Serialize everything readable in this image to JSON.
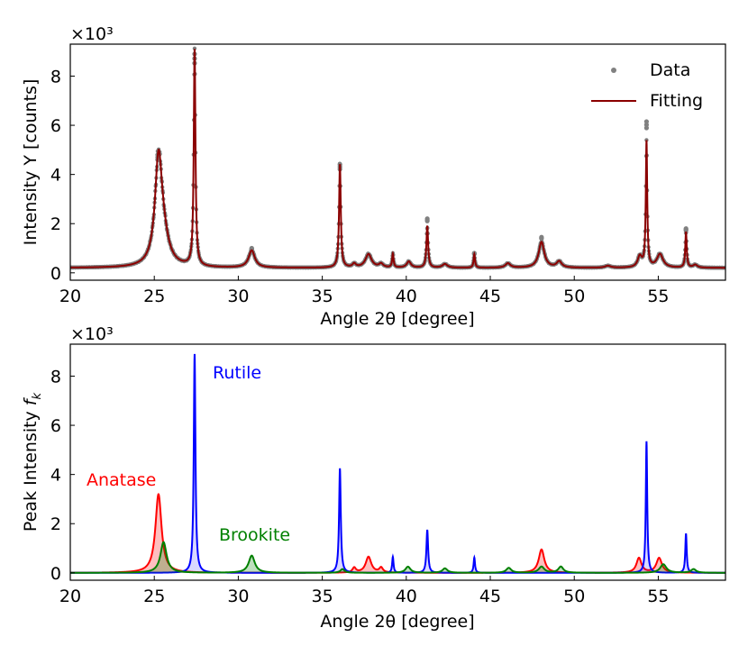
{
  "chart_data": [
    {
      "type": "line",
      "xlabel": "Angle 2θ [degree]",
      "ylabel": "Intensity Y [counts]",
      "y_multiplier": "×10³",
      "xlim": [
        20,
        59
      ],
      "ylim": [
        -300,
        9300
      ],
      "xticks": [
        20,
        25,
        30,
        35,
        40,
        45,
        50,
        55
      ],
      "yticks": [
        0,
        2000,
        4000,
        6000,
        8000
      ],
      "ytick_labels": [
        "0",
        "2",
        "4",
        "6",
        "8"
      ],
      "grid": false,
      "legend_position": "top-right",
      "baseline": 200,
      "peaks": [
        {
          "x": 25.25,
          "h": 4000,
          "w": 0.25
        },
        {
          "x": 25.5,
          "h": 1100,
          "w": 0.4
        },
        {
          "x": 27.4,
          "h": 8800,
          "w": 0.06
        },
        {
          "x": 30.8,
          "h": 700,
          "w": 0.22
        },
        {
          "x": 36.05,
          "h": 4200,
          "w": 0.06
        },
        {
          "x": 36.9,
          "h": 150,
          "w": 0.12
        },
        {
          "x": 37.75,
          "h": 550,
          "w": 0.22
        },
        {
          "x": 38.5,
          "h": 150,
          "w": 0.15
        },
        {
          "x": 39.2,
          "h": 550,
          "w": 0.05
        },
        {
          "x": 40.15,
          "h": 250,
          "w": 0.15
        },
        {
          "x": 41.25,
          "h": 1700,
          "w": 0.06
        },
        {
          "x": 42.3,
          "h": 150,
          "w": 0.18
        },
        {
          "x": 44.05,
          "h": 550,
          "w": 0.05
        },
        {
          "x": 46.05,
          "h": 180,
          "w": 0.18
        },
        {
          "x": 48.05,
          "h": 1050,
          "w": 0.2
        },
        {
          "x": 49.1,
          "h": 250,
          "w": 0.18
        },
        {
          "x": 52.0,
          "h": 80,
          "w": 0.2
        },
        {
          "x": 53.9,
          "h": 450,
          "w": 0.15
        },
        {
          "x": 54.3,
          "h": 5100,
          "w": 0.05
        },
        {
          "x": 55.1,
          "h": 550,
          "w": 0.22
        },
        {
          "x": 56.65,
          "h": 1450,
          "w": 0.05
        },
        {
          "x": 57.2,
          "h": 120,
          "w": 0.15
        }
      ],
      "data_highlights": [
        {
          "x": 25.2,
          "y": 4800
        },
        {
          "x": 27.4,
          "y": 8900
        },
        {
          "x": 30.8,
          "y": 1000
        },
        {
          "x": 36.05,
          "y": 4400
        },
        {
          "x": 41.25,
          "y": 2200
        },
        {
          "x": 44.05,
          "y": 800
        },
        {
          "x": 48.05,
          "y": 1450
        },
        {
          "x": 54.3,
          "y": 6150
        },
        {
          "x": 56.65,
          "y": 1800
        }
      ],
      "series": [
        {
          "name": "Data",
          "style": "scatter",
          "color": "#808080"
        },
        {
          "name": "Fitting",
          "style": "line",
          "color": "#8b0000"
        }
      ]
    },
    {
      "type": "area",
      "xlabel": "Angle 2θ [degree]",
      "ylabel": "Peak Intensity f_k",
      "y_multiplier": "×10³",
      "xlim": [
        20,
        59
      ],
      "ylim": [
        -300,
        9300
      ],
      "xticks": [
        20,
        25,
        30,
        35,
        40,
        45,
        50,
        55
      ],
      "yticks": [
        0,
        2000,
        4000,
        6000,
        8000
      ],
      "ytick_labels": [
        "0",
        "2",
        "4",
        "6",
        "8"
      ],
      "grid": false,
      "series": [
        {
          "name": "Anatase",
          "color": "#ff0000",
          "peaks": [
            {
              "x": 25.25,
              "h": 3200,
              "w": 0.22
            },
            {
              "x": 36.9,
              "h": 200,
              "w": 0.12
            },
            {
              "x": 37.75,
              "h": 650,
              "w": 0.2
            },
            {
              "x": 38.5,
              "h": 200,
              "w": 0.13
            },
            {
              "x": 48.05,
              "h": 950,
              "w": 0.2
            },
            {
              "x": 53.85,
              "h": 600,
              "w": 0.18
            },
            {
              "x": 55.05,
              "h": 600,
              "w": 0.2
            }
          ]
        },
        {
          "name": "Rutile",
          "color": "#0000ff",
          "peaks": [
            {
              "x": 27.4,
              "h": 8900,
              "w": 0.06
            },
            {
              "x": 36.05,
              "h": 4250,
              "w": 0.06
            },
            {
              "x": 39.2,
              "h": 650,
              "w": 0.05
            },
            {
              "x": 41.25,
              "h": 1750,
              "w": 0.06
            },
            {
              "x": 44.05,
              "h": 620,
              "w": 0.05
            },
            {
              "x": 54.3,
              "h": 5350,
              "w": 0.05
            },
            {
              "x": 56.65,
              "h": 1600,
              "w": 0.05
            }
          ]
        },
        {
          "name": "Brookite",
          "color": "#008000",
          "peaks": [
            {
              "x": 25.55,
              "h": 1250,
              "w": 0.22
            },
            {
              "x": 30.8,
              "h": 700,
              "w": 0.22
            },
            {
              "x": 36.2,
              "h": 150,
              "w": 0.15
            },
            {
              "x": 40.1,
              "h": 250,
              "w": 0.18
            },
            {
              "x": 42.3,
              "h": 180,
              "w": 0.18
            },
            {
              "x": 46.1,
              "h": 200,
              "w": 0.18
            },
            {
              "x": 48.05,
              "h": 250,
              "w": 0.2
            },
            {
              "x": 49.2,
              "h": 250,
              "w": 0.18
            },
            {
              "x": 55.3,
              "h": 350,
              "w": 0.22
            },
            {
              "x": 57.1,
              "h": 150,
              "w": 0.18
            }
          ]
        }
      ]
    }
  ]
}
